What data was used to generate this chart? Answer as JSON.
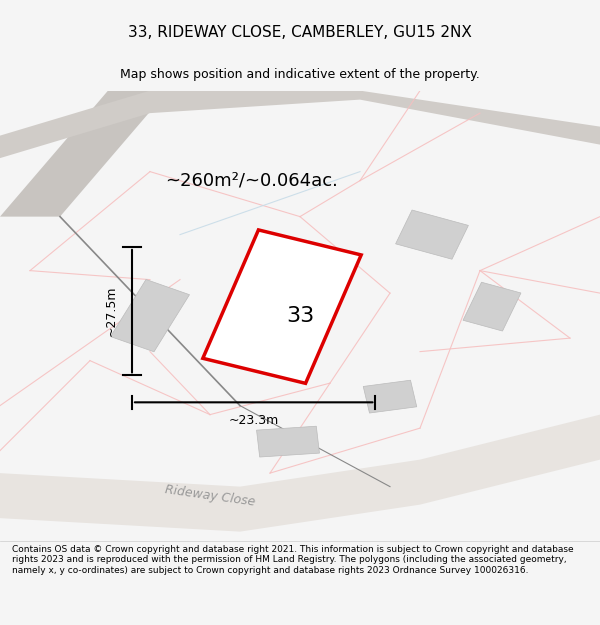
{
  "title": "33, RIDEWAY CLOSE, CAMBERLEY, GU15 2NX",
  "subtitle": "Map shows position and indicative extent of the property.",
  "footer": "Contains OS data © Crown copyright and database right 2021. This information is subject to Crown copyright and database rights 2023 and is reproduced with the permission of HM Land Registry. The polygons (including the associated geometry, namely x, y co-ordinates) are subject to Crown copyright and database rights 2023 Ordnance Survey 100026316.",
  "area_label": "~260m²/~0.064ac.",
  "width_label": "~23.3m",
  "height_label": "~27.5m",
  "house_number": "33",
  "bg_color": "#f5f5f5",
  "map_bg": "#f8f8f8",
  "road_color_pink": "#f5c0c0",
  "road_color_gray": "#d8d8d8",
  "road_color_blue": "#c8dce8",
  "plot_color_red": "#dd0000",
  "plot_fill": "#ffffff",
  "building_fill": "#d8d8d8",
  "title_bar_bg": "#ffffff",
  "footer_bg": "#ffffff"
}
